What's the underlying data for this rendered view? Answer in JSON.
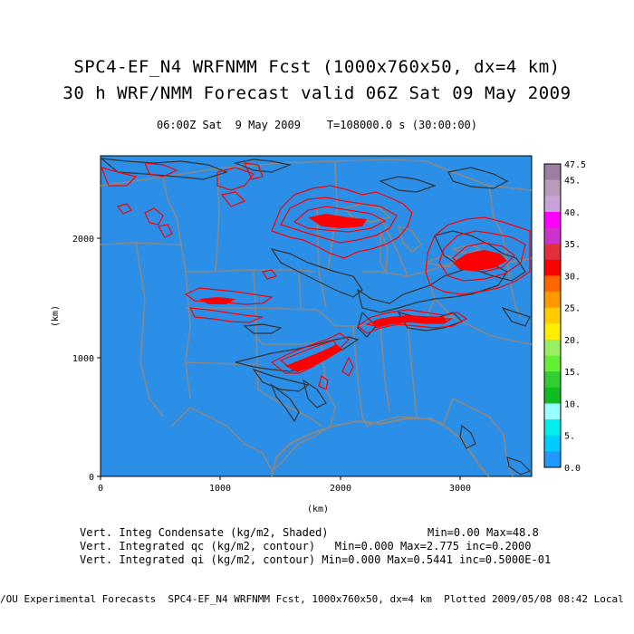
{
  "title_line1": "SPC4-EF_N4 WRFNMM Fcst (1000x760x50, dx=4 km)",
  "title_line2": "30 h WRF/NMM Forecast valid 06Z Sat 09 May 2009",
  "subtitle": "06:00Z Sat  9 May 2009    T=108000.0 s (30:00:00)",
  "axes": {
    "x_label": "(km)",
    "y_label": "(km)",
    "x_ticks": [
      "0",
      "1000",
      "2000",
      "3000"
    ],
    "y_ticks": [
      "0",
      "1000",
      "2000"
    ],
    "x_range": [
      0,
      3600
    ],
    "y_range": [
      0,
      2700
    ]
  },
  "colorbar": {
    "labels": [
      "47.5",
      "45.",
      "40.",
      "35.",
      "30.",
      "25.",
      "20.",
      "15.",
      "10.",
      "5.",
      "0.0"
    ],
    "colors": [
      "#9b7fa0",
      "#b79bb9",
      "#c8a2d8",
      "#ff00ff",
      "#cc33cc",
      "#e0303a",
      "#ff0000",
      "#ff6600",
      "#ff9900",
      "#ffcc00",
      "#ffee00",
      "#99ee66",
      "#66ee33",
      "#33cc33",
      "#11bb22",
      "#99ffff",
      "#00eeee",
      "#00ccff",
      "#2299ff"
    ],
    "min": 0.0,
    "max": 47.5
  },
  "stats": {
    "line1_left": "Vert. Integ Condensate (kg/m2, Shaded)",
    "line1_right": "Min=0.00 Max=48.8",
    "line2": "Vert. Integrated qc (kg/m2, contour)   Min=0.000 Max=2.775 inc=0.2000",
    "line3": "Vert. Integrated qi (kg/m2, contour) Min=0.000 Max=0.5441 inc=0.5000E-01"
  },
  "footer": "/OU Experimental Forecasts  SPC4-EF_N4 WRFNMM Fcst, 1000x760x50, dx=4 km  Plotted 2009/05/08 08:42 Local",
  "colors": {
    "field": "#2b8fe8",
    "boundary": "#888888",
    "qc_contour": "#ff0000",
    "qi_contour": "#333333"
  }
}
